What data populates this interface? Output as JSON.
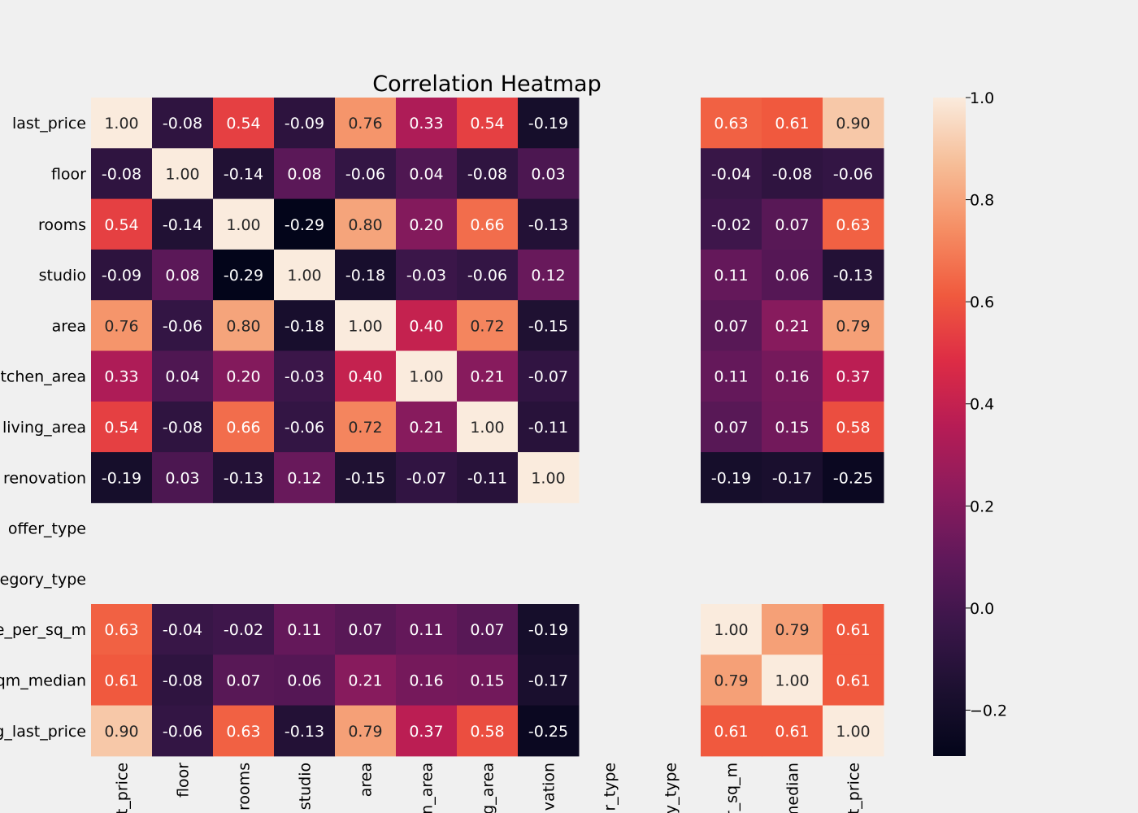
{
  "chart_data": {
    "type": "heatmap",
    "title": "Correlation Heatmap",
    "row_labels": [
      "last_price",
      "floor",
      "rooms",
      "studio",
      "area",
      "tchen_area",
      "living_area",
      "renovation",
      "offer_type",
      "egory_type",
      "e_per_sq_m",
      "qm_median",
      "g_last_price"
    ],
    "col_labels": [
      "t_price",
      "floor",
      "rooms",
      "studio",
      "area",
      "n_area",
      "g_area",
      "vation",
      "r_type",
      "y_type",
      "r_sq_m",
      "median",
      "t_price"
    ],
    "values": [
      [
        1.0,
        -0.08,
        0.54,
        -0.09,
        0.76,
        0.33,
        0.54,
        -0.19,
        null,
        null,
        0.63,
        0.61,
        0.9
      ],
      [
        -0.08,
        1.0,
        -0.14,
        0.08,
        -0.06,
        0.04,
        -0.08,
        0.03,
        null,
        null,
        -0.04,
        -0.08,
        -0.06
      ],
      [
        0.54,
        -0.14,
        1.0,
        -0.29,
        0.8,
        0.2,
        0.66,
        -0.13,
        null,
        null,
        -0.02,
        0.07,
        0.63
      ],
      [
        -0.09,
        0.08,
        -0.29,
        1.0,
        -0.18,
        -0.03,
        -0.06,
        0.12,
        null,
        null,
        0.11,
        0.06,
        -0.13
      ],
      [
        0.76,
        -0.06,
        0.8,
        -0.18,
        1.0,
        0.4,
        0.72,
        -0.15,
        null,
        null,
        0.07,
        0.21,
        0.79
      ],
      [
        0.33,
        0.04,
        0.2,
        -0.03,
        0.4,
        1.0,
        0.21,
        -0.07,
        null,
        null,
        0.11,
        0.16,
        0.37
      ],
      [
        0.54,
        -0.08,
        0.66,
        -0.06,
        0.72,
        0.21,
        1.0,
        -0.11,
        null,
        null,
        0.07,
        0.15,
        0.58
      ],
      [
        -0.19,
        0.03,
        -0.13,
        0.12,
        -0.15,
        -0.07,
        -0.11,
        1.0,
        null,
        null,
        -0.19,
        -0.17,
        -0.25
      ],
      [
        null,
        null,
        null,
        null,
        null,
        null,
        null,
        null,
        null,
        null,
        null,
        null,
        null
      ],
      [
        null,
        null,
        null,
        null,
        null,
        null,
        null,
        null,
        null,
        null,
        null,
        null,
        null
      ],
      [
        0.63,
        -0.04,
        -0.02,
        0.11,
        0.07,
        0.11,
        0.07,
        -0.19,
        null,
        null,
        1.0,
        0.79,
        0.61
      ],
      [
        0.61,
        -0.08,
        0.07,
        0.06,
        0.21,
        0.16,
        0.15,
        -0.17,
        null,
        null,
        0.79,
        1.0,
        0.61
      ],
      [
        0.9,
        -0.06,
        0.63,
        -0.13,
        0.79,
        0.37,
        0.58,
        -0.25,
        null,
        null,
        0.61,
        0.61,
        1.0
      ]
    ],
    "colorbar": {
      "min": -0.29,
      "max": 1.0,
      "ticks": [
        1.0,
        0.8,
        0.6,
        0.4,
        0.2,
        0.0,
        -0.2
      ],
      "tick_labels": [
        "1.0",
        "0.8",
        "0.6",
        "0.4",
        "0.2",
        "0.0",
        "−0.2"
      ],
      "colormap": "rocket"
    },
    "background_color": "#f0f0f0"
  }
}
